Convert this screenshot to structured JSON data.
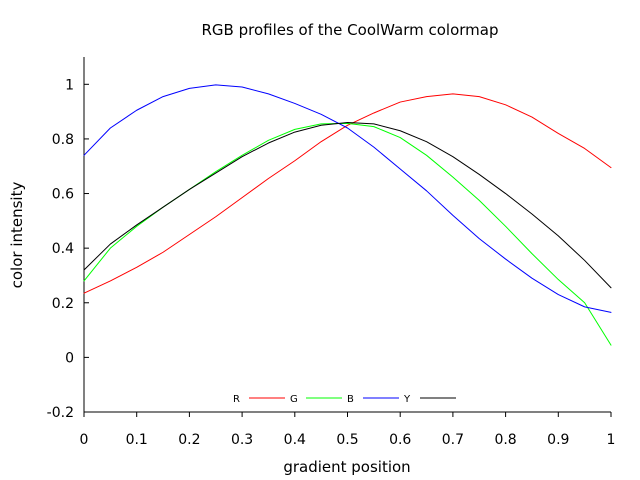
{
  "chart_data": {
    "type": "line",
    "title": "RGB profiles of the CoolWarm colormap",
    "xlabel": "gradient position",
    "ylabel": "color intensity",
    "xlim": [
      0,
      1
    ],
    "ylim": [
      -0.2,
      1.1
    ],
    "xticks": [
      "0",
      "0.1",
      "0.2",
      "0.3",
      "0.4",
      "0.5",
      "0.6",
      "0.7",
      "0.8",
      "0.9",
      "1"
    ],
    "yticks": [
      "-0.2",
      "0",
      "0.2",
      "0.4",
      "0.6",
      "0.8",
      "1"
    ],
    "grid": false,
    "legend_position": "bottom-center",
    "x": [
      0,
      0.05,
      0.1,
      0.15,
      0.2,
      0.25,
      0.3,
      0.35,
      0.4,
      0.45,
      0.5,
      0.55,
      0.6,
      0.65,
      0.7,
      0.75,
      0.8,
      0.85,
      0.9,
      0.95,
      1
    ],
    "series": [
      {
        "name": "R",
        "color": "#ff0000",
        "values": [
          0.235,
          0.28,
          0.33,
          0.385,
          0.45,
          0.515,
          0.585,
          0.655,
          0.72,
          0.79,
          0.85,
          0.895,
          0.935,
          0.955,
          0.965,
          0.955,
          0.925,
          0.88,
          0.82,
          0.765,
          0.695
        ]
      },
      {
        "name": "G",
        "color": "#00ff00",
        "values": [
          0.28,
          0.4,
          0.48,
          0.55,
          0.615,
          0.68,
          0.74,
          0.795,
          0.835,
          0.855,
          0.857,
          0.845,
          0.805,
          0.74,
          0.66,
          0.575,
          0.48,
          0.38,
          0.285,
          0.2,
          0.045
        ]
      },
      {
        "name": "B",
        "color": "#0000ff",
        "values": [
          0.74,
          0.84,
          0.905,
          0.955,
          0.985,
          0.998,
          0.99,
          0.965,
          0.93,
          0.89,
          0.84,
          0.77,
          0.69,
          0.61,
          0.52,
          0.435,
          0.36,
          0.29,
          0.23,
          0.185,
          0.165
        ]
      },
      {
        "name": "Y",
        "color": "#000000",
        "values": [
          0.32,
          0.415,
          0.485,
          0.55,
          0.615,
          0.675,
          0.735,
          0.785,
          0.825,
          0.85,
          0.86,
          0.855,
          0.83,
          0.79,
          0.735,
          0.67,
          0.6,
          0.525,
          0.445,
          0.355,
          0.255
        ]
      }
    ]
  }
}
